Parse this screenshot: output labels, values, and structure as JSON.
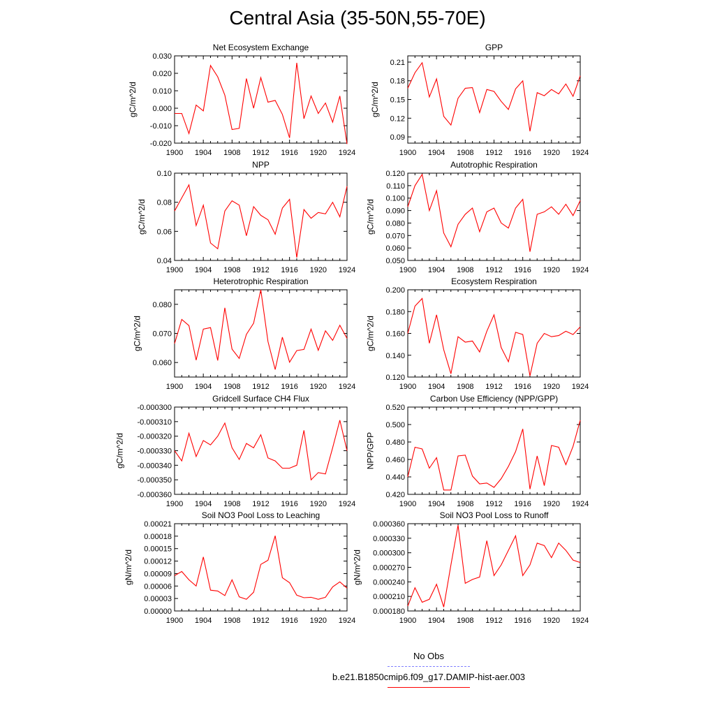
{
  "page_title": "Central Asia (35-50N,55-70E)",
  "legend": [
    {
      "label": "No Obs",
      "color": "#8080ff",
      "dash": true
    },
    {
      "label": "b.e21.B1850cmip6.f09_g17.DAMIP-hist-aer.003",
      "color": "#ff0000",
      "dash": false
    }
  ],
  "line_color": "#ff0000",
  "chart_data": [
    {
      "type": "line",
      "title": "Net Ecosystem Exchange",
      "ylabel": "gC/m^2/d",
      "xlim": [
        1900,
        1924
      ],
      "xticks": [
        "1900",
        "1904",
        "1908",
        "1912",
        "1916",
        "1920",
        "1924"
      ],
      "ylim": [
        -0.02,
        0.03
      ],
      "yticks": [
        "-0.020",
        "-0.010",
        "0.000",
        "0.010",
        "0.020",
        "0.030"
      ],
      "x": [
        1900,
        1901,
        1902,
        1903,
        1904,
        1905,
        1906,
        1907,
        1908,
        1909,
        1910,
        1911,
        1912,
        1913,
        1914,
        1915,
        1916,
        1917,
        1918,
        1919,
        1920,
        1921,
        1922,
        1923,
        1924
      ],
      "values": [
        -0.003,
        -0.003,
        -0.0145,
        0.0018,
        -0.0015,
        0.0245,
        0.018,
        0.0075,
        -0.0122,
        -0.0115,
        0.017,
        0.0,
        0.0175,
        0.0035,
        0.0045,
        -0.0035,
        -0.017,
        0.026,
        -0.006,
        0.007,
        -0.003,
        0.003,
        -0.008,
        0.007,
        -0.0205
      ]
    },
    {
      "type": "line",
      "title": "GPP",
      "ylabel": "gC/m^2/d",
      "xlim": [
        1900,
        1924
      ],
      "xticks": [
        "1900",
        "1904",
        "1908",
        "1912",
        "1916",
        "1920",
        "1924"
      ],
      "ylim": [
        0.08,
        0.22
      ],
      "yticks": [
        "0.09",
        "0.12",
        "0.15",
        "0.18",
        "0.21"
      ],
      "x": [
        1900,
        1901,
        1902,
        1903,
        1904,
        1905,
        1906,
        1907,
        1908,
        1909,
        1910,
        1911,
        1912,
        1913,
        1914,
        1915,
        1916,
        1917,
        1918,
        1919,
        1920,
        1921,
        1922,
        1923,
        1924
      ],
      "values": [
        0.168,
        0.193,
        0.209,
        0.154,
        0.183,
        0.123,
        0.109,
        0.152,
        0.168,
        0.169,
        0.129,
        0.166,
        0.163,
        0.147,
        0.134,
        0.167,
        0.18,
        0.099,
        0.161,
        0.156,
        0.166,
        0.159,
        0.175,
        0.155,
        0.188
      ]
    },
    {
      "type": "line",
      "title": "NPP",
      "ylabel": "gC/m^2/d",
      "xlim": [
        1900,
        1924
      ],
      "xticks": [
        "1900",
        "1904",
        "1908",
        "1912",
        "1916",
        "1920",
        "1924"
      ],
      "ylim": [
        0.04,
        0.1
      ],
      "yticks": [
        "0.04",
        "0.06",
        "0.08",
        "0.10"
      ],
      "x": [
        1900,
        1901,
        1902,
        1903,
        1904,
        1905,
        1906,
        1907,
        1908,
        1909,
        1910,
        1911,
        1912,
        1913,
        1914,
        1915,
        1916,
        1917,
        1918,
        1919,
        1920,
        1921,
        1922,
        1923,
        1924
      ],
      "values": [
        0.074,
        0.083,
        0.092,
        0.064,
        0.078,
        0.052,
        0.048,
        0.074,
        0.081,
        0.078,
        0.057,
        0.077,
        0.071,
        0.068,
        0.058,
        0.076,
        0.082,
        0.042,
        0.075,
        0.069,
        0.073,
        0.072,
        0.08,
        0.07,
        0.091
      ]
    },
    {
      "type": "line",
      "title": "Autotrophic Respiration",
      "ylabel": "gC/m^2/d",
      "xlim": [
        1900,
        1924
      ],
      "xticks": [
        "1900",
        "1904",
        "1908",
        "1912",
        "1916",
        "1920",
        "1924"
      ],
      "ylim": [
        0.05,
        0.12
      ],
      "yticks": [
        "0.050",
        "0.060",
        "0.070",
        "0.080",
        "0.090",
        "0.100",
        "0.110",
        "0.120"
      ],
      "x": [
        1900,
        1901,
        1902,
        1903,
        1904,
        1905,
        1906,
        1907,
        1908,
        1909,
        1910,
        1911,
        1912,
        1913,
        1914,
        1915,
        1916,
        1917,
        1918,
        1919,
        1920,
        1921,
        1922,
        1923,
        1924
      ],
      "values": [
        0.093,
        0.11,
        0.119,
        0.09,
        0.106,
        0.072,
        0.061,
        0.079,
        0.087,
        0.092,
        0.073,
        0.089,
        0.092,
        0.08,
        0.076,
        0.092,
        0.099,
        0.057,
        0.087,
        0.089,
        0.093,
        0.087,
        0.095,
        0.086,
        0.098
      ]
    },
    {
      "type": "line",
      "title": "Heterotrophic Respiration",
      "ylabel": "gC/m^2/d",
      "xlim": [
        1900,
        1924
      ],
      "xticks": [
        "1900",
        "1904",
        "1908",
        "1912",
        "1916",
        "1920",
        "1924"
      ],
      "ylim": [
        0.055,
        0.085
      ],
      "yticks": [
        "0.060",
        "0.070",
        "0.080"
      ],
      "x": [
        1900,
        1901,
        1902,
        1903,
        1904,
        1905,
        1906,
        1907,
        1908,
        1909,
        1910,
        1911,
        1912,
        1913,
        1914,
        1915,
        1916,
        1917,
        1918,
        1919,
        1920,
        1921,
        1922,
        1923,
        1924
      ],
      "values": [
        0.0665,
        0.0748,
        0.0727,
        0.0608,
        0.0715,
        0.072,
        0.0607,
        0.0788,
        0.0646,
        0.0614,
        0.0697,
        0.0735,
        0.085,
        0.0672,
        0.0576,
        0.0687,
        0.0601,
        0.0641,
        0.0645,
        0.0715,
        0.0642,
        0.0709,
        0.0676,
        0.0728,
        0.0683
      ]
    },
    {
      "type": "line",
      "title": "Ecosystem Respiration",
      "ylabel": "gC/m^2/d",
      "xlim": [
        1900,
        1924
      ],
      "xticks": [
        "1900",
        "1904",
        "1908",
        "1912",
        "1916",
        "1920",
        "1924"
      ],
      "ylim": [
        0.12,
        0.2
      ],
      "yticks": [
        "0.120",
        "0.140",
        "0.160",
        "0.180",
        "0.200"
      ],
      "x": [
        1900,
        1901,
        1902,
        1903,
        1904,
        1905,
        1906,
        1907,
        1908,
        1909,
        1910,
        1911,
        1912,
        1913,
        1914,
        1915,
        1916,
        1917,
        1918,
        1919,
        1920,
        1921,
        1922,
        1923,
        1924
      ],
      "values": [
        0.16,
        0.185,
        0.192,
        0.151,
        0.177,
        0.145,
        0.123,
        0.157,
        0.152,
        0.153,
        0.143,
        0.162,
        0.177,
        0.147,
        0.134,
        0.161,
        0.159,
        0.121,
        0.151,
        0.16,
        0.157,
        0.158,
        0.162,
        0.159,
        0.166
      ]
    },
    {
      "type": "line",
      "title": "Gridcell Surface CH4 Flux",
      "ylabel": "gC/m^2/d",
      "xlim": [
        1900,
        1924
      ],
      "xticks": [
        "1900",
        "1904",
        "1908",
        "1912",
        "1916",
        "1920",
        "1924"
      ],
      "ylim": [
        -0.00036,
        -0.0003
      ],
      "yticks": [
        "-0.000360",
        "-0.000350",
        "-0.000340",
        "-0.000330",
        "-0.000320",
        "-0.000310",
        "-0.000300"
      ],
      "x": [
        1900,
        1901,
        1902,
        1903,
        1904,
        1905,
        1906,
        1907,
        1908,
        1909,
        1910,
        1911,
        1912,
        1913,
        1914,
        1915,
        1916,
        1917,
        1918,
        1919,
        1920,
        1921,
        1922,
        1923,
        1924
      ],
      "values": [
        -0.00033,
        -0.000337,
        -0.000318,
        -0.000334,
        -0.000323,
        -0.000326,
        -0.00032,
        -0.000311,
        -0.000328,
        -0.000336,
        -0.000325,
        -0.000328,
        -0.000319,
        -0.000335,
        -0.000337,
        -0.000342,
        -0.000342,
        -0.00034,
        -0.000316,
        -0.00035,
        -0.000345,
        -0.000346,
        -0.000328,
        -0.000309,
        -0.00033
      ]
    },
    {
      "type": "line",
      "title": "Carbon Use Efficiency (NPP/GPP)",
      "ylabel": "NPP/GPP",
      "xlim": [
        1900,
        1924
      ],
      "xticks": [
        "1900",
        "1904",
        "1908",
        "1912",
        "1916",
        "1920",
        "1924"
      ],
      "ylim": [
        0.42,
        0.52
      ],
      "yticks": [
        "0.420",
        "0.440",
        "0.460",
        "0.480",
        "0.500",
        "0.520"
      ],
      "x": [
        1900,
        1901,
        1902,
        1903,
        1904,
        1905,
        1906,
        1907,
        1908,
        1909,
        1910,
        1911,
        1912,
        1913,
        1914,
        1915,
        1916,
        1917,
        1918,
        1919,
        1920,
        1921,
        1922,
        1923,
        1924
      ],
      "values": [
        0.44,
        0.474,
        0.472,
        0.45,
        0.462,
        0.425,
        0.425,
        0.464,
        0.465,
        0.441,
        0.432,
        0.433,
        0.428,
        0.438,
        0.452,
        0.469,
        0.495,
        0.426,
        0.464,
        0.43,
        0.476,
        0.474,
        0.454,
        0.475,
        0.505
      ]
    },
    {
      "type": "line",
      "title": "Soil NO3 Pool Loss to Leaching",
      "ylabel": "gN/m^2/d",
      "xlim": [
        1900,
        1924
      ],
      "xticks": [
        "1900",
        "1904",
        "1908",
        "1912",
        "1916",
        "1920",
        "1924"
      ],
      "ylim": [
        0.0,
        0.00021
      ],
      "yticks": [
        "0.00000",
        "0.00003",
        "0.00006",
        "0.00009",
        "0.00012",
        "0.00015",
        "0.00018",
        "0.00021"
      ],
      "x": [
        1900,
        1901,
        1902,
        1903,
        1904,
        1905,
        1906,
        1907,
        1908,
        1909,
        1910,
        1911,
        1912,
        1913,
        1914,
        1915,
        1916,
        1917,
        1918,
        1919,
        1920,
        1921,
        1922,
        1923,
        1924
      ],
      "values": [
        8.5e-05,
        9.5e-05,
        7.5e-05,
        6e-05,
        0.00013,
        5e-05,
        4.8e-05,
        3.7e-05,
        7.5e-05,
        3.4e-05,
        2.8e-05,
        4.5e-05,
        0.000112,
        0.000122,
        0.000181,
        8e-05,
        6.8e-05,
        3.8e-05,
        3.2e-05,
        3.3e-05,
        2.8e-05,
        3.3e-05,
        5.8e-05,
        7e-05,
        5.5e-05
      ]
    },
    {
      "type": "line",
      "title": "Soil NO3 Pool Loss to Runoff",
      "ylabel": "gN/m^2/d",
      "xlim": [
        1900,
        1924
      ],
      "xticks": [
        "1900",
        "1904",
        "1908",
        "1912",
        "1916",
        "1920",
        "1924"
      ],
      "ylim": [
        0.00018,
        0.00036
      ],
      "yticks": [
        "0.000180",
        "0.000210",
        "0.000240",
        "0.000270",
        "0.000300",
        "0.000330",
        "0.000360"
      ],
      "x": [
        1900,
        1901,
        1902,
        1903,
        1904,
        1905,
        1906,
        1907,
        1908,
        1909,
        1910,
        1911,
        1912,
        1913,
        1914,
        1915,
        1916,
        1917,
        1918,
        1919,
        1920,
        1921,
        1922,
        1923,
        1924
      ],
      "values": [
        0.00019,
        0.000228,
        0.000198,
        0.000204,
        0.000235,
        0.000188,
        0.000275,
        0.000357,
        0.000237,
        0.000245,
        0.00025,
        0.000325,
        0.000253,
        0.000275,
        0.000305,
        0.000335,
        0.000253,
        0.000275,
        0.00032,
        0.000315,
        0.00029,
        0.00032,
        0.000305,
        0.000285,
        0.00028
      ]
    }
  ]
}
